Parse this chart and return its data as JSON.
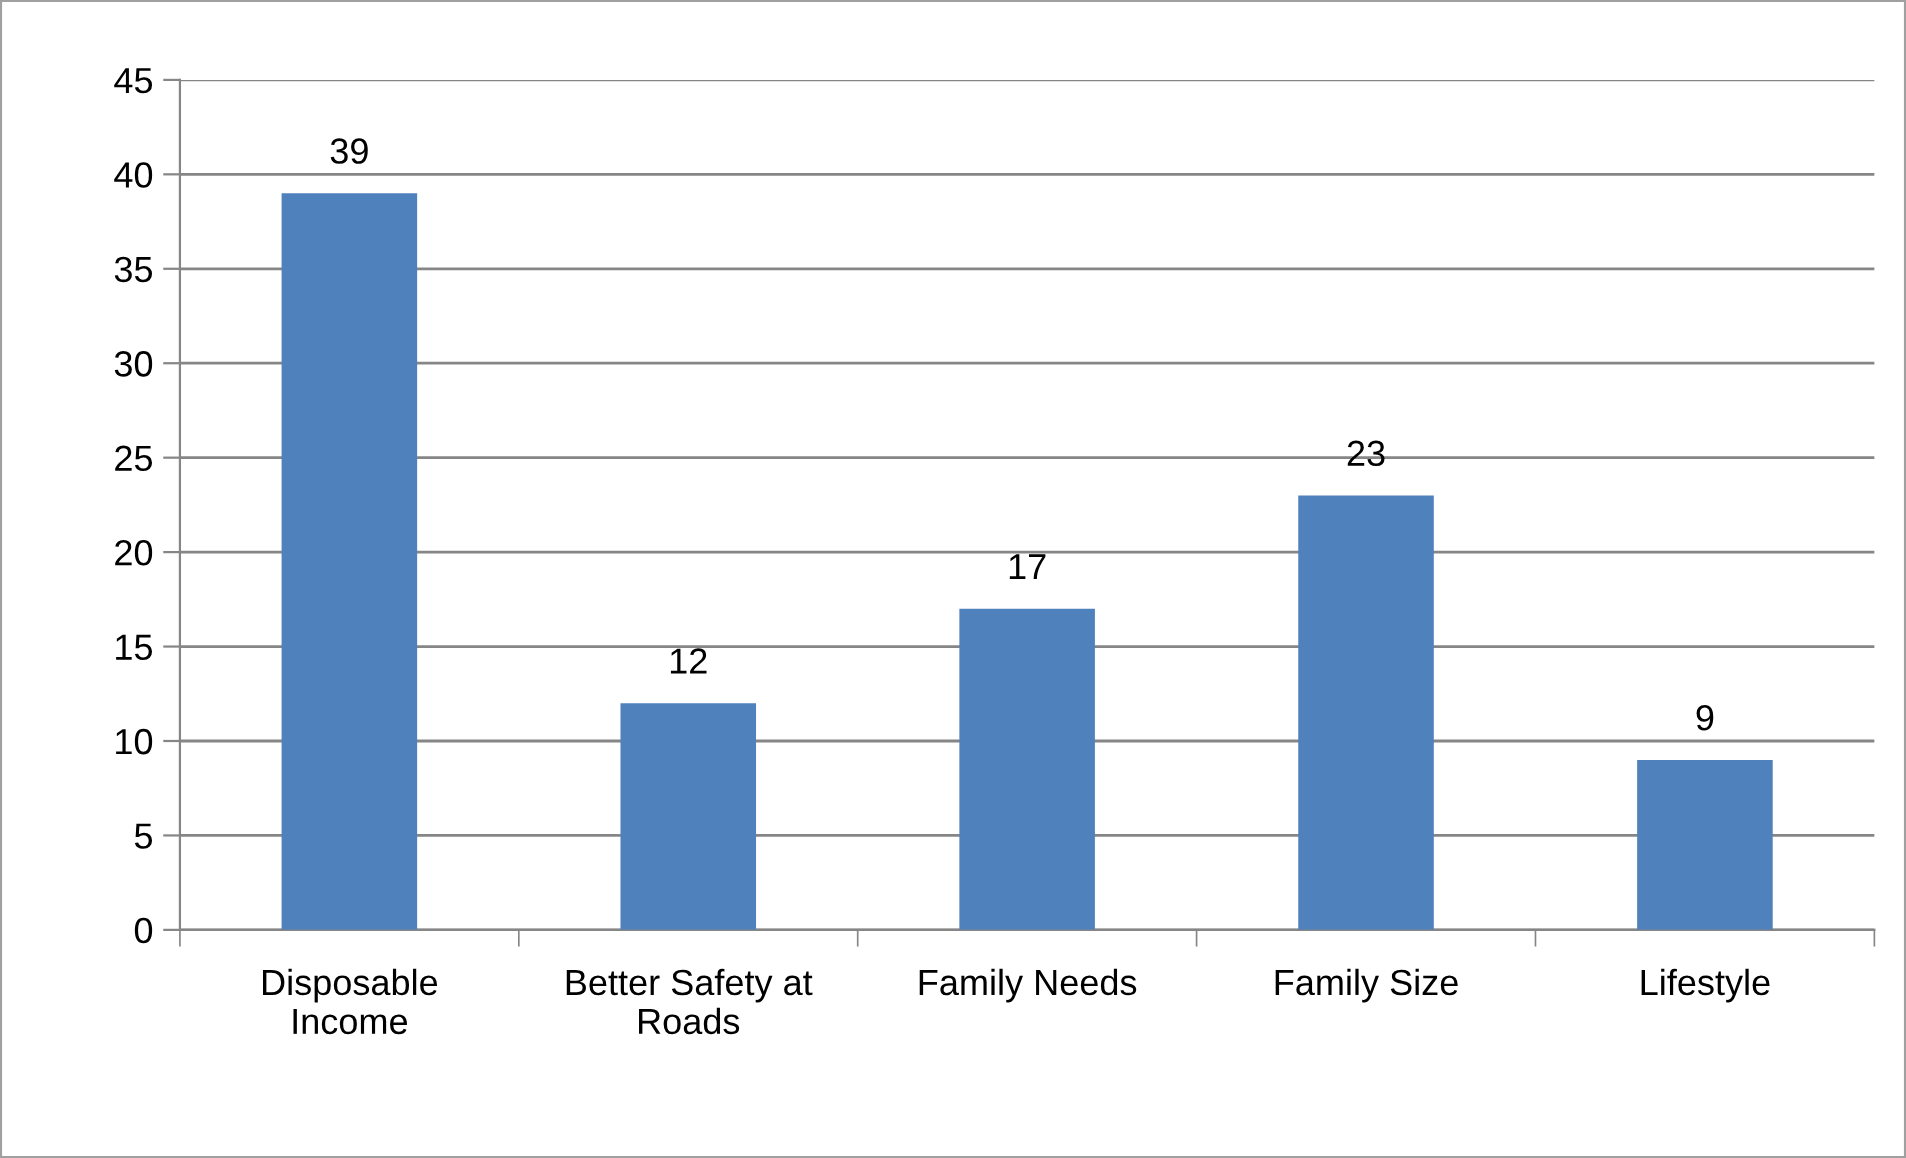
{
  "chart_data": {
    "type": "bar",
    "categories": [
      "Disposable\nIncome",
      "Better Safety at\nRoads",
      "Family Needs",
      "Family Size",
      "Lifestyle"
    ],
    "values": [
      39,
      12,
      17,
      23,
      9
    ],
    "color": "#4f81bd",
    "ylim": [
      0,
      45
    ],
    "yticks": [
      0,
      5,
      10,
      15,
      20,
      25,
      30,
      35,
      40,
      45
    ],
    "grid": "y",
    "data_labels": true
  }
}
